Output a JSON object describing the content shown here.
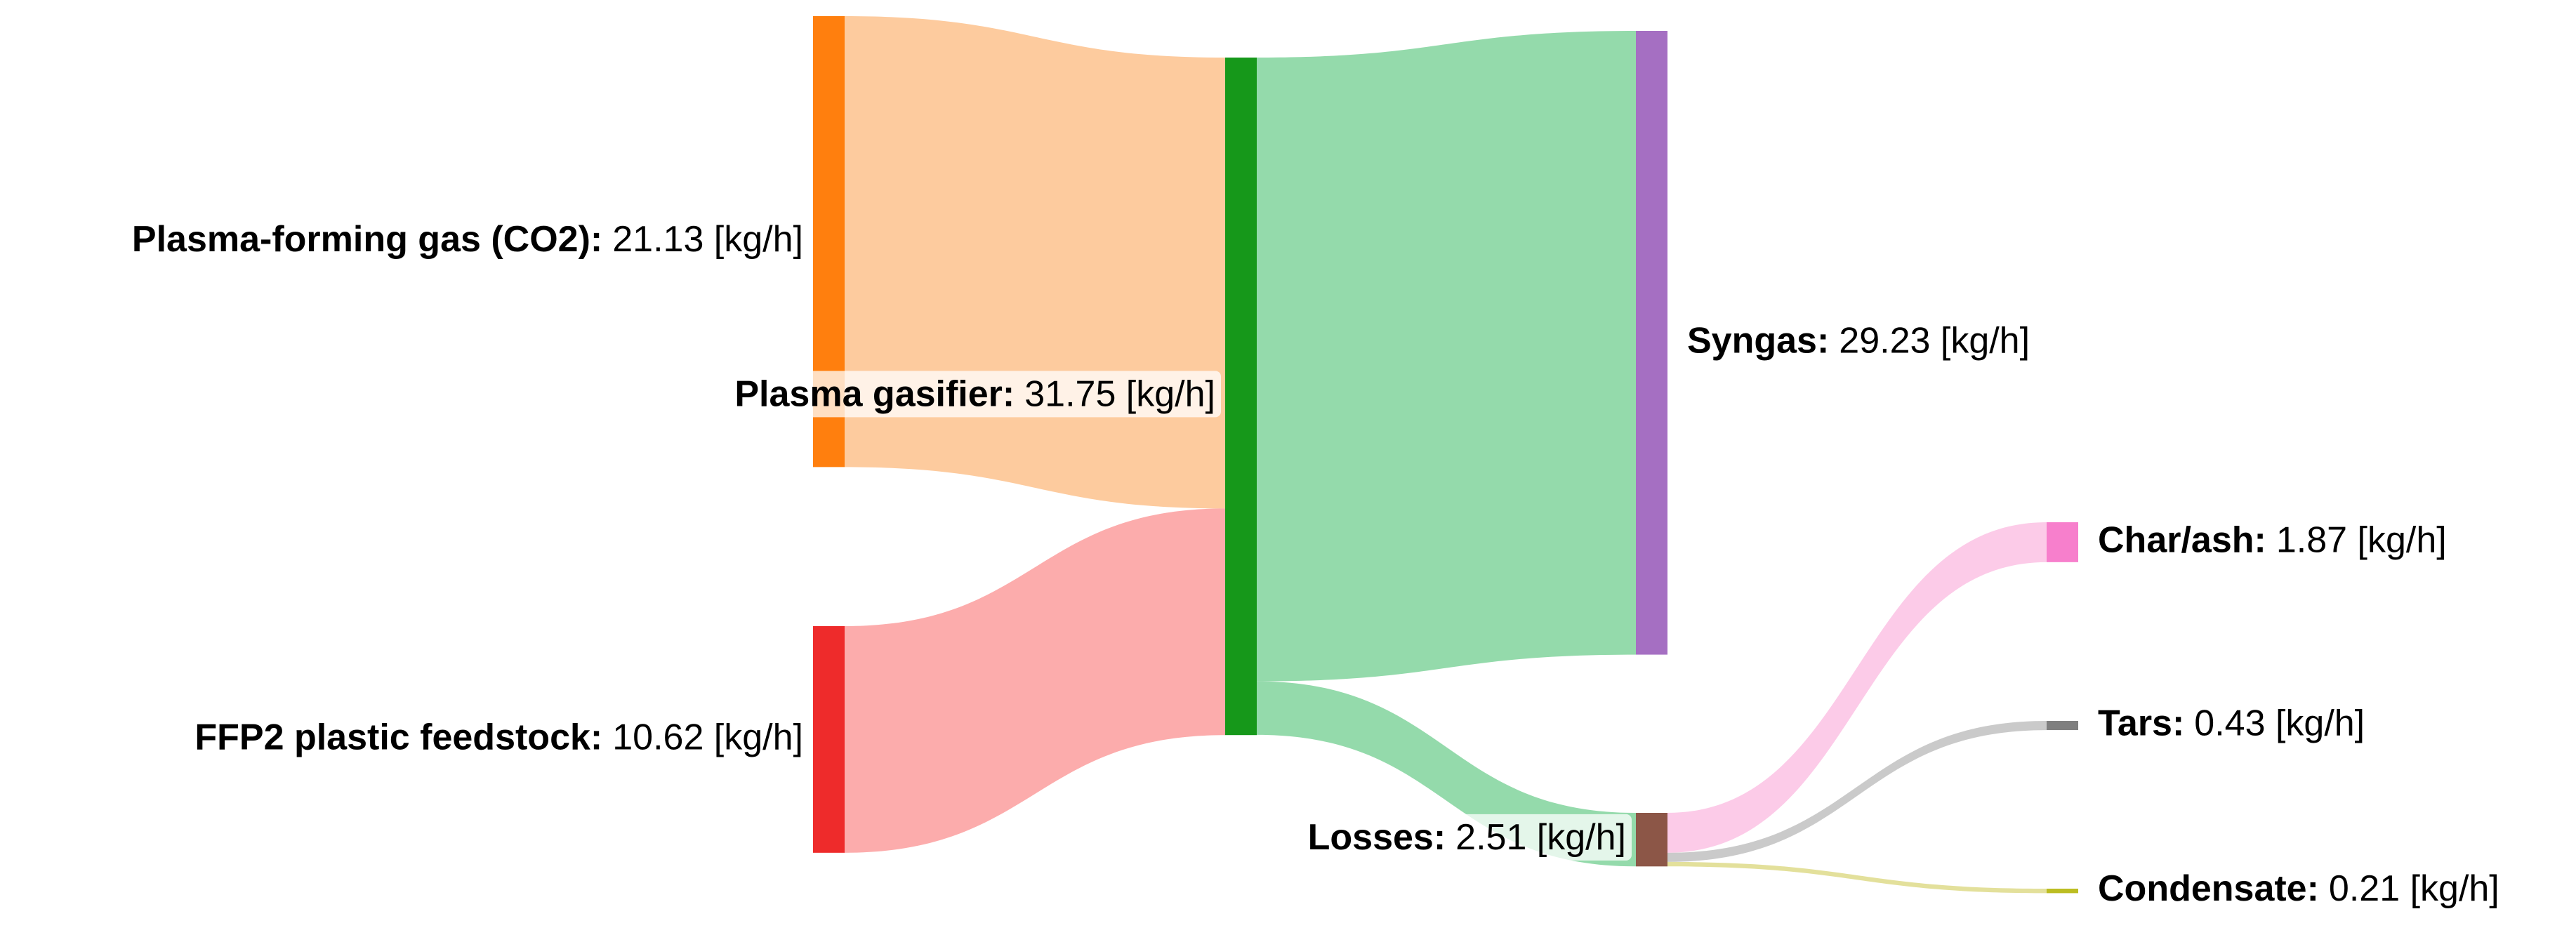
{
  "chart_data": {
    "type": "sankey",
    "nodes": [
      {
        "name": "Plasma-forming gas (CO2):",
        "value": 21.13,
        "value_label": "21.13 [kg/h]",
        "color": "#ff7f0e"
      },
      {
        "name": "FFP2 plastic feedstock:",
        "value": 10.62,
        "value_label": "10.62 [kg/h]",
        "color": "#ee2b2b"
      },
      {
        "name": "Plasma gasifier:",
        "value": 31.75,
        "value_label": "31.75 [kg/h]",
        "color": "#16981a"
      },
      {
        "name": "Syngas:",
        "value": 29.23,
        "value_label": "29.23 [kg/h]",
        "color": "#a56fc2"
      },
      {
        "name": "Losses:",
        "value": 2.51,
        "value_label": "2.51 [kg/h]",
        "color": "#8c5647"
      },
      {
        "name": "Char/ash:",
        "value": 1.87,
        "value_label": "1.87 [kg/h]",
        "color": "#f77fcc"
      },
      {
        "name": "Tars:",
        "value": 0.43,
        "value_label": "0.43 [kg/h]",
        "color": "#7f7f7f"
      },
      {
        "name": "Condensate:",
        "value": 0.21,
        "value_label": "0.21 [kg/h]",
        "color": "#bcbd22"
      }
    ],
    "links": [
      {
        "source": 0,
        "target": 2,
        "value": 21.13,
        "color": "#fdc594"
      },
      {
        "source": 1,
        "target": 2,
        "value": 10.62,
        "color": "#fca3a3"
      },
      {
        "source": 2,
        "target": 3,
        "value": 29.23,
        "color": "#88d6a2"
      },
      {
        "source": 2,
        "target": 4,
        "value": 2.51,
        "color": "#88d6a2"
      },
      {
        "source": 4,
        "target": 5,
        "value": 1.87,
        "color": "#fcc5e5"
      },
      {
        "source": 4,
        "target": 6,
        "value": 0.43,
        "color": "#c4c4c4"
      },
      {
        "source": 4,
        "target": 7,
        "value": 0.21,
        "color": "#e0dd90"
      }
    ]
  }
}
